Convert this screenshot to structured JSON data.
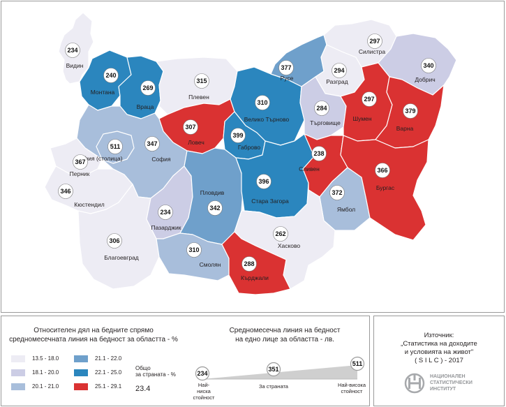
{
  "colors": {
    "c1": "#edecf4",
    "c2": "#cccde5",
    "c3": "#a8bedb",
    "c4": "#6fa0cb",
    "c5": "#2b86be",
    "c6": "#da3232",
    "border": "#ffffff"
  },
  "regions": [
    {
      "id": "vidin",
      "name": "Видин",
      "value": "234",
      "cls": "c1"
    },
    {
      "id": "montana",
      "name": "Монтана",
      "value": "240",
      "cls": "c5"
    },
    {
      "id": "vratsa",
      "name": "Враца",
      "value": "269",
      "cls": "c5"
    },
    {
      "id": "pleven",
      "name": "Плевен",
      "value": "315",
      "cls": "c1"
    },
    {
      "id": "lovech",
      "name": "Ловеч",
      "value": "307",
      "cls": "c6"
    },
    {
      "id": "veliko-tarnovo",
      "name": "Велико Търново",
      "value": "310",
      "cls": "c5"
    },
    {
      "id": "gabrovo",
      "name": "Габрово",
      "value": "399",
      "cls": "c5"
    },
    {
      "id": "ruse",
      "name": "Русе",
      "value": "377",
      "cls": "c4"
    },
    {
      "id": "razgrad",
      "name": "Разград",
      "value": "294",
      "cls": "c1"
    },
    {
      "id": "silistra",
      "name": "Силистра",
      "value": "297",
      "cls": "c1"
    },
    {
      "id": "dobrich",
      "name": "Добрич",
      "value": "340",
      "cls": "c2"
    },
    {
      "id": "targovishte",
      "name": "Търговище",
      "value": "284",
      "cls": "c2"
    },
    {
      "id": "shumen",
      "name": "Шумен",
      "value": "297",
      "cls": "c6"
    },
    {
      "id": "varna",
      "name": "Варна",
      "value": "379",
      "cls": "c6"
    },
    {
      "id": "sofia-city",
      "name": "София (столица)",
      "value": "511",
      "cls": "c3"
    },
    {
      "id": "sofia",
      "name": "София",
      "value": "347",
      "cls": "c3"
    },
    {
      "id": "pernik",
      "name": "Перник",
      "value": "367",
      "cls": "c1"
    },
    {
      "id": "kyustendil",
      "name": "Кюстендил",
      "value": "346",
      "cls": "c1"
    },
    {
      "id": "blagoevgrad",
      "name": "Благоевград",
      "value": "306",
      "cls": "c1"
    },
    {
      "id": "pazardzhik",
      "name": "Пазарджик",
      "value": "234",
      "cls": "c2"
    },
    {
      "id": "plovdiv",
      "name": "Пловдив",
      "value": "342",
      "cls": "c4"
    },
    {
      "id": "stara-zagora",
      "name": "Стара Загора",
      "value": "396",
      "cls": "c5"
    },
    {
      "id": "sliven",
      "name": "Сливен",
      "value": "238",
      "cls": "c6"
    },
    {
      "id": "yambol",
      "name": "Ямбол",
      "value": "372",
      "cls": "c3"
    },
    {
      "id": "burgas",
      "name": "Бургас",
      "value": "366",
      "cls": "c6"
    },
    {
      "id": "haskovo",
      "name": "Хасково",
      "value": "262",
      "cls": "c1"
    },
    {
      "id": "smolyan",
      "name": "Смолян",
      "value": "310",
      "cls": "c3"
    },
    {
      "id": "kardzhali",
      "name": "Кърджали",
      "value": "288",
      "cls": "c6"
    }
  ],
  "legend": {
    "title_line1": "Относителен дял на бедните спрямо",
    "title_line2": "средномесечната линия на бедност за областта - %",
    "items": [
      {
        "label": "13.5  -  18.0",
        "cls": "c1"
      },
      {
        "label": "18.1  -  20.0",
        "cls": "c2"
      },
      {
        "label": "20.1  -  21.0",
        "cls": "c3"
      },
      {
        "label": "21.1  -  22.0",
        "cls": "c4"
      },
      {
        "label": "22.1  -  25.0",
        "cls": "c5"
      },
      {
        "label": "25.1  -  29.1",
        "cls": "c6"
      }
    ],
    "total_label_line1": "Общо",
    "total_label_line2": "за страната - %",
    "total_value": "23.4"
  },
  "poverty_line": {
    "title_line1": "Средномесечна линия на бедност",
    "title_line2": "на едно лице за областта - лв.",
    "min_value": "234",
    "min_label_line1": "Най-ниска",
    "min_label_line2": "стойност",
    "country_value": "351",
    "country_label": "За страната",
    "max_value": "511",
    "max_label_line1": "Най-висока",
    "max_label_line2": "стойност"
  },
  "source": {
    "line1": "Източник:",
    "line2": "„Статистика на доходите",
    "line3": "и условията на живот\"",
    "line4": "( S I L C ) - 2017",
    "logo_letters": "НСИ",
    "logo_text_line1": "НАЦИОНАЛЕН",
    "logo_text_line2": "СТАТИСТИЧЕСКИ",
    "logo_text_line3": "ИНСТИТУТ"
  }
}
